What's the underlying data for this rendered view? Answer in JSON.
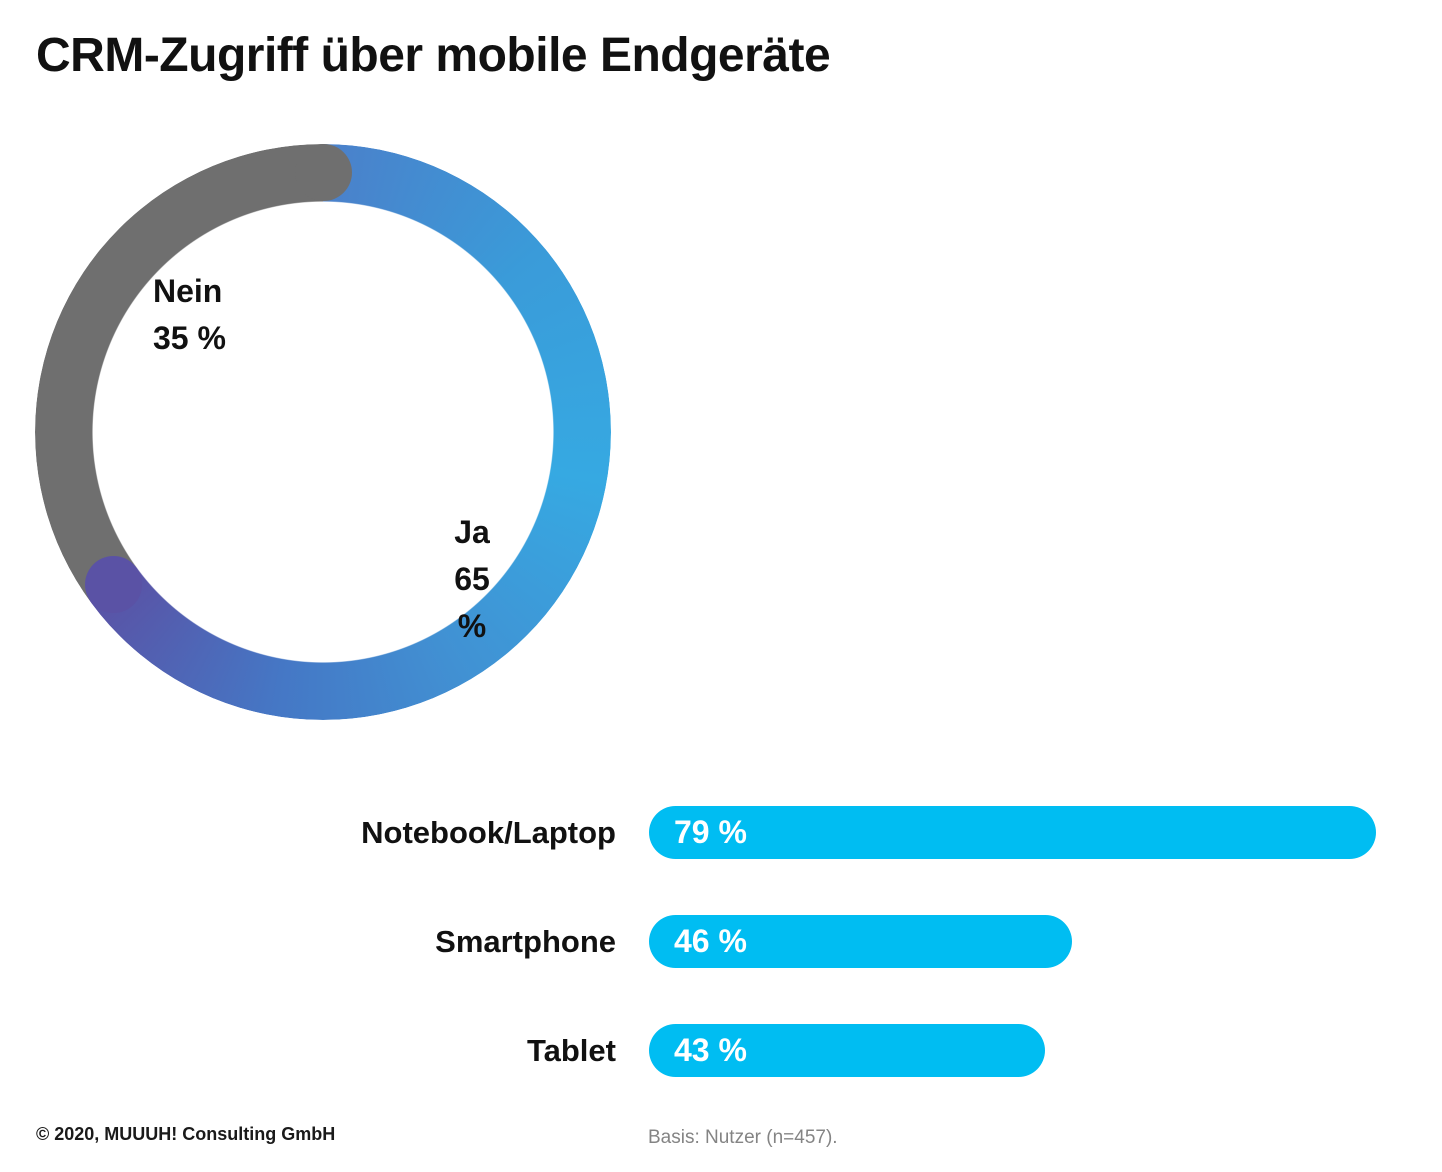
{
  "page": {
    "title": "CRM-Zugriff über mobile Endgeräte"
  },
  "footer": {
    "copyright": "© 2020, MUUUH! Consulting GmbH",
    "basis": "Basis: Nutzer (n=457)."
  },
  "colors": {
    "text": "#111111",
    "muted": "#848484",
    "bar_cyan": "#00bdf2",
    "donut_gray": "#6f6f6f",
    "donut_purple": "#5a52a5",
    "donut_blue_start": "#4b80ca",
    "donut_blue_upper": "#3a9bd9",
    "donut_blue_light": "#36a9e2",
    "donut_blue_lower": "#4191d3",
    "donut_blue_bottom": "#4577c5"
  },
  "chart_data": [
    {
      "type": "pie",
      "variant": "donut",
      "direction": "clockwise",
      "start_angle_deg": 0,
      "legend_position": "inside",
      "series": [
        {
          "label": "Ja",
          "value": 65,
          "display": "65 %",
          "color_gradient": [
            "#4b80ca",
            "#36a9e2",
            "#4577c5",
            "#5a52a5"
          ]
        },
        {
          "label": "Nein",
          "value": 35,
          "display": "35 %",
          "color": "#6f6f6f"
        }
      ]
    },
    {
      "type": "bar",
      "orientation": "horizontal",
      "categories": [
        "Notebook/Laptop",
        "Smartphone",
        "Tablet"
      ],
      "values": [
        79,
        46,
        43
      ],
      "value_labels": [
        "79 %",
        "46 %",
        "43 %"
      ],
      "xlim": [
        0,
        100
      ],
      "grid": false,
      "bar_color": "#00bdf2",
      "value_label_color": "#ffffff"
    }
  ]
}
